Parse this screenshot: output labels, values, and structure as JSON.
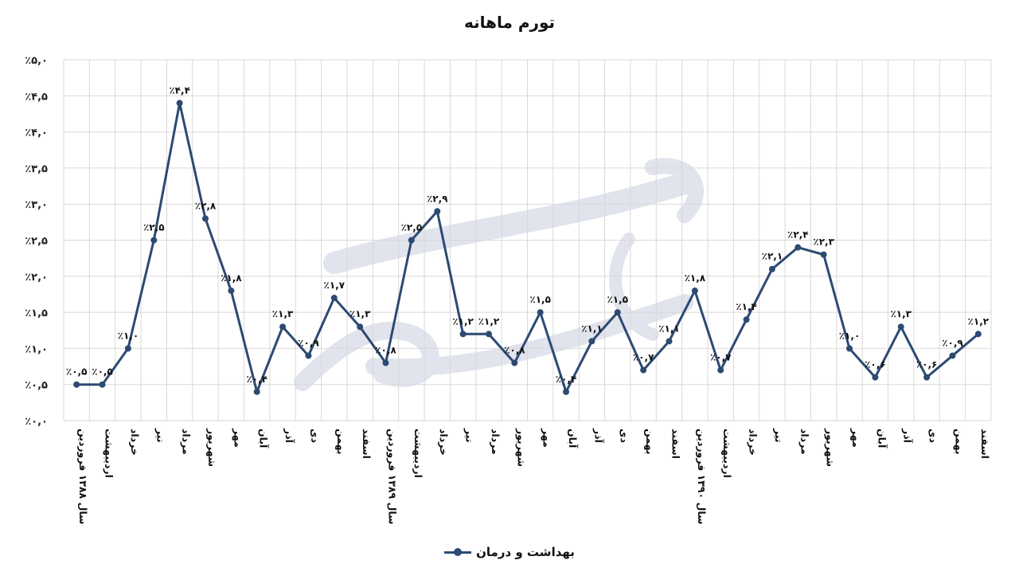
{
  "chart_data": {
    "type": "line",
    "title": "تورم ماهانه",
    "xlabel": "",
    "ylabel": "",
    "ylim": [
      0,
      5.0
    ],
    "y_ticks": [
      "٪۰,۰",
      "٪۰,۵",
      "٪۱,۰",
      "٪۱,۵",
      "٪۲,۰",
      "٪۲,۵",
      "٪۳,۰",
      "٪۳,۵",
      "٪۴,۰",
      "٪۴,۵",
      "٪۵,۰"
    ],
    "y_tick_values": [
      0,
      0.5,
      1.0,
      1.5,
      2.0,
      2.5,
      3.0,
      3.5,
      4.0,
      4.5,
      5.0
    ],
    "grid": true,
    "legend_position": "bottom",
    "categories": [
      "سال ۱۳۸۸ فروردین",
      "اردیبهشت",
      "خرداد",
      "تیر",
      "مرداد",
      "شهریور",
      "مهر",
      "آبان",
      "آذر",
      "دی",
      "بهمن",
      "اسفند",
      "سال ۱۳۸۹ فروردین",
      "اردیبهشت",
      "خرداد",
      "تیر",
      "مرداد",
      "شهریور",
      "مهر",
      "آبان",
      "آذر",
      "دی",
      "بهمن",
      "اسفند",
      "سال ۱۳۹۰ فروردین",
      "اردیبهشت",
      "خرداد",
      "تیر",
      "مرداد",
      "شهریور",
      "مهر",
      "آبان",
      "آذر",
      "دی",
      "بهمن",
      "اسفند"
    ],
    "series": [
      {
        "name": "بهداشت و درمان",
        "color": "#2c4a72",
        "values": [
          0.5,
          0.5,
          1.0,
          2.5,
          4.4,
          2.8,
          1.8,
          0.4,
          1.3,
          0.9,
          1.7,
          1.3,
          0.8,
          2.5,
          2.9,
          1.2,
          1.2,
          0.8,
          1.5,
          0.4,
          1.1,
          1.5,
          0.7,
          1.1,
          1.8,
          0.7,
          1.4,
          2.1,
          2.4,
          2.3,
          1.0,
          0.6,
          1.3,
          0.6,
          0.9,
          1.2
        ],
        "labels": [
          "٪۰,۵",
          "٪۰,۵",
          "٪۱,۰",
          "٪۲,۵",
          "٪۴,۴",
          "٪۲,۸",
          "٪۱,۸",
          "٪۰,۴",
          "٪۱,۳",
          "٪۰,۹",
          "٪۱,۷",
          "٪۱,۳",
          "٪۰,۸",
          "٪۲,۵",
          "٪۲,۹",
          "٪۱,۲",
          "٪۱,۲",
          "٪۰,۸",
          "٪۱,۵",
          "٪۰,۴",
          "٪۱,۱",
          "٪۱,۵",
          "٪۰,۷",
          "٪۱,۱",
          "٪۱,۸",
          "٪۰,۷",
          "٪۱,۴",
          "٪۲,۱",
          "٪۲,۴",
          "٪۲,۳",
          "٪۱,۰",
          "٪۰,۶",
          "٪۱,۳",
          "٪۰,۶",
          "٪۰,۹",
          "٪۱,۲"
        ]
      }
    ]
  },
  "legend": {
    "label": "بهداشت و درمان"
  },
  "colors": {
    "line": "#2c4a72",
    "grid": "#d9d9d9",
    "watermark": "#c9cde0"
  }
}
